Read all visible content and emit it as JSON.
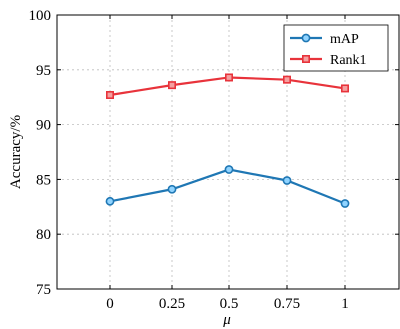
{
  "chart_data": {
    "type": "line",
    "categories": [
      "0",
      "0.25",
      "0.5",
      "0.75",
      "1"
    ],
    "series": [
      {
        "name": "mAP",
        "values": [
          83.0,
          84.1,
          85.9,
          84.9,
          82.8
        ],
        "color": "#1f77b4",
        "fill": "#8fd3ff",
        "marker": "circle"
      },
      {
        "name": "Rank1",
        "values": [
          92.7,
          93.6,
          94.3,
          94.1,
          93.3
        ],
        "color": "#e8333b",
        "fill": "#f4a0a0",
        "marker": "square"
      }
    ],
    "xlabel": "μ",
    "ylabel": "Accuracy/%",
    "ylim": [
      75,
      100
    ],
    "yticks": [
      "75",
      "80",
      "85",
      "90",
      "95",
      "100"
    ],
    "grid": true,
    "legend": "top-right"
  }
}
